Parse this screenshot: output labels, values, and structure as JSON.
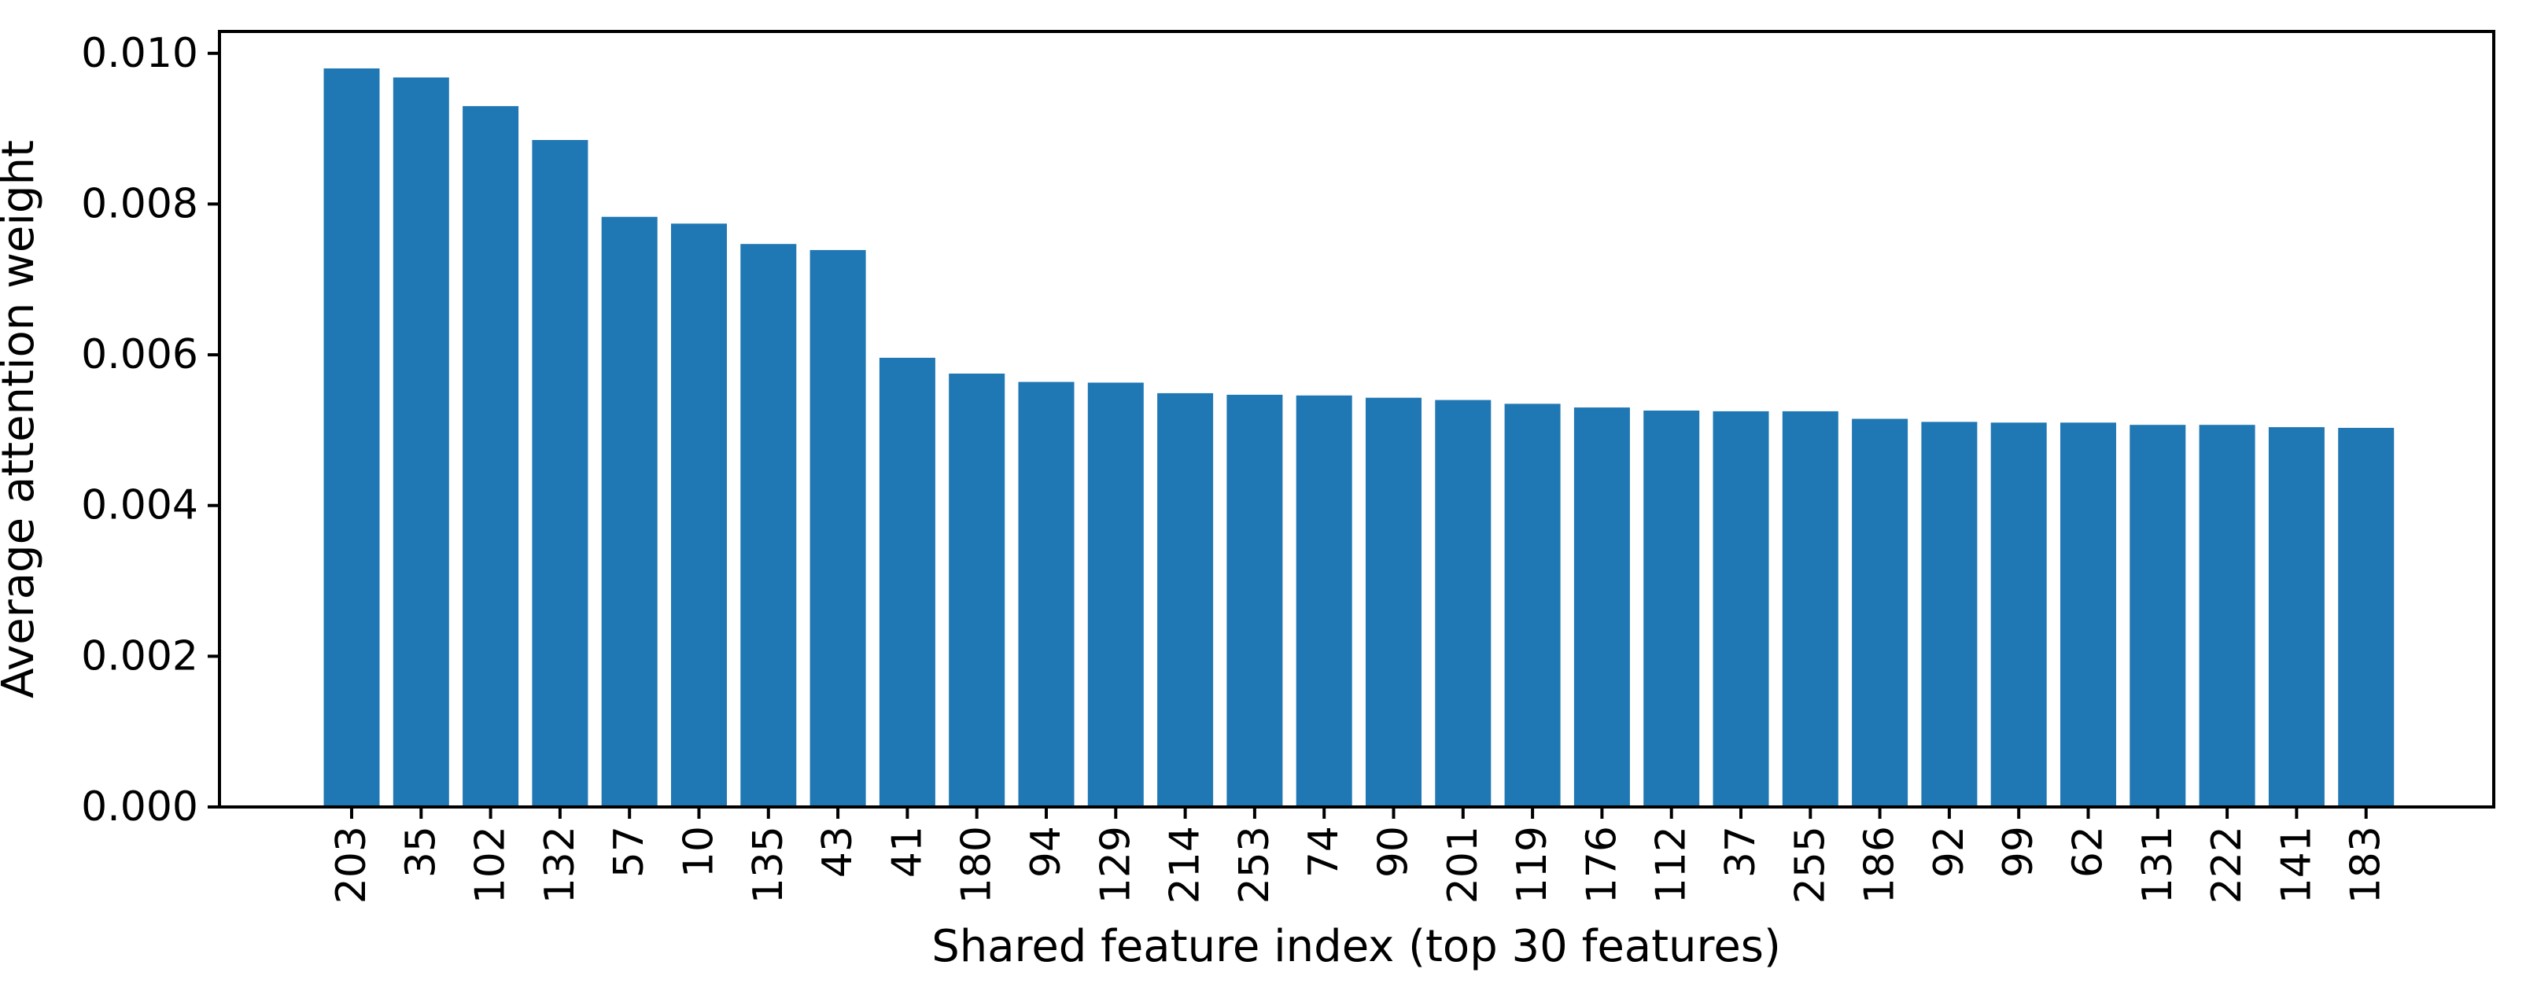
{
  "chart_data": {
    "type": "bar",
    "title": "",
    "xlabel": "Shared feature index (top 30 features)",
    "ylabel": "Average attention weight",
    "categories": [
      "203",
      "35",
      "102",
      "132",
      "57",
      "10",
      "135",
      "43",
      "41",
      "180",
      "94",
      "129",
      "214",
      "253",
      "74",
      "90",
      "201",
      "119",
      "176",
      "112",
      "37",
      "255",
      "186",
      "92",
      "99",
      "62",
      "131",
      "222",
      "141",
      "183"
    ],
    "values": [
      0.0098,
      0.00968,
      0.0093,
      0.00885,
      0.00783,
      0.00774,
      0.00747,
      0.00739,
      0.00596,
      0.00575,
      0.00564,
      0.00563,
      0.00549,
      0.00547,
      0.00546,
      0.00543,
      0.0054,
      0.00535,
      0.0053,
      0.00526,
      0.00525,
      0.00525,
      0.00515,
      0.00511,
      0.0051,
      0.0051,
      0.00507,
      0.00507,
      0.00504,
      0.00503
    ],
    "ylim": [
      0,
      0.01029
    ],
    "yticks": [
      0,
      0.002,
      0.004,
      0.006,
      0.008,
      0.01
    ],
    "ytick_labels": [
      "0.000",
      "0.002",
      "0.004",
      "0.006",
      "0.008",
      "0.010"
    ],
    "x_tick_rotation": 90,
    "grid": false,
    "legend_position": "none",
    "bar_color": "#1f77b4",
    "axis_color": "#000000"
  }
}
